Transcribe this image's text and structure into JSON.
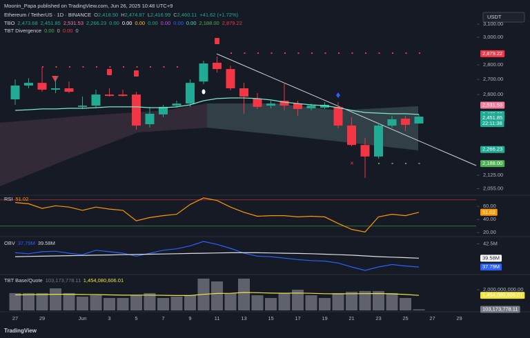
{
  "publisher": "Moonin_Papa published on TradingView.com, Jun 26, 2025 10:48 UTC+9",
  "currency": "USDT",
  "footer": "TradingView",
  "chart_data": [
    {
      "type": "candlestick",
      "title": "Ethereum / TetherUS · 1D · BINANCE",
      "legend": [
        {
          "text": "O",
          "color": "#b2b5be"
        },
        {
          "text": "2,418.50",
          "color": "#22ab94"
        },
        {
          "text": "H",
          "color": "#b2b5be"
        },
        {
          "text": "2,474.87",
          "color": "#22ab94"
        },
        {
          "text": "L",
          "color": "#b2b5be"
        },
        {
          "text": "2,416.99",
          "color": "#22ab94"
        },
        {
          "text": "C",
          "color": "#b2b5be"
        },
        {
          "text": "2,460.11",
          "color": "#22ab94"
        },
        {
          "text": "+41.62 (+1.72%)",
          "color": "#22ab94"
        }
      ],
      "indicators": [
        {
          "name": "TBO",
          "values": [
            {
              "text": "2,473.68",
              "color": "#22ab94"
            },
            {
              "text": "2,451.85",
              "color": "#22ab94"
            },
            {
              "text": "2,531.53",
              "color": "#f77c9c"
            },
            {
              "text": "2,266.23",
              "color": "#22ab94"
            },
            {
              "text": "0.00",
              "color": "#22ab94"
            },
            {
              "text": "0.00",
              "color": "#ffffff"
            },
            {
              "text": "0.00",
              "color": "#f0c419"
            },
            {
              "text": "0.00",
              "color": "#22ab94"
            },
            {
              "text": "0.00",
              "color": "#c353f0"
            },
            {
              "text": "0.00",
              "color": "#2962ff"
            },
            {
              "text": "0.00",
              "color": "#5ad6c0"
            },
            {
              "text": "2,188.00",
              "color": "#4caf50"
            },
            {
              "text": "2,879.22",
              "color": "#f23645"
            }
          ]
        },
        {
          "name": "TBT Divergence",
          "values": [
            {
              "text": "0.00",
              "color": "#4caf50"
            },
            {
              "text": "0",
              "color": "#b2b5be"
            },
            {
              "text": "0.00",
              "color": "#f23645"
            },
            {
              "text": "0",
              "color": "#b2b5be"
            }
          ]
        }
      ],
      "categories": [
        "27",
        null,
        "29",
        null,
        null,
        "Jun",
        null,
        "3",
        null,
        "5",
        null,
        "7",
        null,
        "9",
        null,
        "11",
        null,
        "13",
        null,
        "15",
        null,
        "17",
        null,
        "19",
        null,
        "21",
        null,
        "23",
        null,
        "25",
        null,
        "27",
        null,
        "29"
      ],
      "open": [
        2569,
        2659,
        2677,
        2632,
        2641,
        2521,
        2529,
        2600,
        2600,
        2600,
        2414,
        2474,
        2529,
        2542,
        2686,
        2815,
        2771,
        2641,
        2574,
        2529,
        2560,
        2542,
        2512,
        2516,
        2521,
        2406,
        2292,
        2227,
        2406,
        2448,
        2418.5,
        null,
        null,
        null
      ],
      "high": [
        2700,
        2709,
        2786,
        2723,
        2686,
        2587,
        2632,
        2641,
        2632,
        2618,
        2521,
        2534,
        2560,
        2700,
        2830,
        2859,
        2795,
        2677,
        2609,
        2560,
        2677,
        2560,
        2542,
        2551,
        2551,
        2457,
        2332,
        2423,
        2465,
        2465,
        2474.87,
        null,
        null,
        null
      ],
      "low": [
        2534,
        2641,
        2618,
        2609,
        2609,
        2508,
        2516,
        2587,
        2587,
        2382,
        2394,
        2457,
        2516,
        2521,
        2668,
        2747,
        2627,
        2478,
        2508,
        2512,
        2499,
        2465,
        2499,
        2508,
        2390,
        2285,
        2111,
        2215,
        2394,
        2373,
        2416.99,
        null,
        null,
        null
      ],
      "close": [
        2659,
        2677,
        2632,
        2641,
        2618,
        2529,
        2600,
        2591,
        2591,
        2406,
        2478,
        2521,
        2542,
        2677,
        2810,
        2771,
        2641,
        2587,
        2521,
        2542,
        2529,
        2508,
        2529,
        2534,
        2406,
        2292,
        2227,
        2406,
        2444,
        2410,
        2460.11,
        null,
        null,
        null
      ],
      "up_color": "#22ab94",
      "down_color": "#f23645",
      "lines": [
        {
          "color": "#7ee8c8",
          "values": [
            2499,
            2503,
            2508,
            2508,
            2512,
            2512,
            2516,
            2521,
            2521,
            2521,
            2516,
            2516,
            2521,
            2534,
            2560,
            2574,
            2578,
            2578,
            2574,
            2565,
            2551,
            2542,
            2534,
            2529,
            2516,
            2499,
            2486,
            2482,
            2478,
            2478,
            2473.68,
            null,
            null,
            null
          ]
        }
      ],
      "log_scale": true,
      "ylim": [
        2025,
        3209
      ],
      "yticks": [
        {
          "value": 2055,
          "label": "2,055.00"
        },
        {
          "value": 2125,
          "label": "2,125.00"
        },
        {
          "value": 2600,
          "label": "2,600.00"
        },
        {
          "value": 2700,
          "label": "2,700.00"
        },
        {
          "value": 2800,
          "label": "2,800.00"
        },
        {
          "value": 3000,
          "label": "3,000.00"
        },
        {
          "value": 3100,
          "label": "3,100.00"
        }
      ],
      "price_labels": [
        {
          "value": 2879.22,
          "label": "2,879.22",
          "color": "#f23645"
        },
        {
          "value": 2531.53,
          "label": "2,531.53",
          "color": "#f77c9c"
        },
        {
          "value": 2473.68,
          "label": "2,473.68",
          "color": "#22ab94"
        },
        {
          "value": 2460.11,
          "label": "2,460.11",
          "color": "#22ab94",
          "countdown": "22:11:38"
        },
        {
          "value": 2451.85,
          "label": "2,451.85",
          "color": "#22ab94"
        },
        {
          "value": 2266.23,
          "label": "2,266.23",
          "color": "#22ab94"
        },
        {
          "value": 2188.0,
          "label": "2,188.00",
          "color": "#4caf50"
        }
      ]
    },
    {
      "type": "line",
      "title": "RSI",
      "legend": [
        {
          "text": "51.02",
          "color": "#ff9800"
        }
      ],
      "series": [
        {
          "color": "#ff9800",
          "values": [
            66,
            64,
            57,
            61,
            59,
            54,
            59,
            56,
            54,
            38,
            43,
            46,
            48,
            63,
            73,
            69,
            59,
            51,
            45,
            46,
            46,
            44,
            45,
            44,
            34,
            25,
            21,
            44,
            48,
            46,
            51.02,
            null,
            null,
            null
          ]
        }
      ],
      "levels": [
        {
          "value": 70,
          "color": "#f23645"
        },
        {
          "value": 30,
          "color": "#4caf50"
        }
      ],
      "ylim": [
        15,
        75
      ],
      "yticks": [
        {
          "value": 20,
          "label": "20.00"
        },
        {
          "value": 40,
          "label": "40.00"
        },
        {
          "value": 60,
          "label": "60.00"
        }
      ],
      "price_labels": [
        {
          "value": 51.02,
          "label": "51.02",
          "color": "#ff9800"
        }
      ]
    },
    {
      "type": "line",
      "title": "OBV",
      "legend": [
        {
          "text": "37.79M",
          "color": "#2962ff"
        },
        {
          "text": "39.58M",
          "color": "#d1d4dc"
        }
      ],
      "series": [
        {
          "color": "#2962ff",
          "values": [
            40.7,
            40.5,
            40.9,
            41.0,
            40.6,
            40.3,
            41.2,
            40.9,
            40.6,
            40.0,
            40.6,
            41.2,
            41.5,
            42.1,
            43.0,
            42.4,
            41.6,
            40.6,
            40.0,
            39.9,
            39.6,
            39.3,
            39.1,
            39.0,
            38.6,
            37.8,
            37.1,
            37.8,
            38.3,
            38.0,
            37.79,
            null,
            null,
            null
          ]
        },
        {
          "color": "#e0e0e0",
          "values": [
            39.9,
            39.95,
            40.0,
            40.05,
            40.1,
            40.15,
            40.2,
            40.25,
            40.3,
            40.35,
            40.4,
            40.45,
            40.5,
            40.55,
            40.6,
            40.65,
            40.7,
            40.7,
            40.7,
            40.65,
            40.6,
            40.55,
            40.5,
            40.4,
            40.3,
            40.2,
            40.05,
            39.9,
            39.8,
            39.7,
            39.58,
            null,
            null,
            null
          ]
        }
      ],
      "ylim": [
        36.4,
        43.7
      ],
      "yticks": [
        {
          "value": 42.5,
          "label": "42.5M"
        }
      ],
      "price_labels": [
        {
          "value": 39.58,
          "label": "39.58M",
          "color": "#ffffff"
        },
        {
          "value": 37.79,
          "label": "37.79M",
          "color": "#2962ff"
        }
      ]
    },
    {
      "type": "bar",
      "title": "TBT Base/Quote",
      "legend": [
        {
          "text": "103,173,778.11",
          "color": "#787b86"
        },
        {
          "text": "1,454,080,606.01",
          "color": "#f0e442"
        }
      ],
      "values": [
        1670000000,
        1670000000,
        1670000000,
        2130000000,
        1670000000,
        1330000000,
        1470000000,
        1200000000,
        1200000000,
        1470000000,
        1670000000,
        1200000000,
        1330000000,
        1470000000,
        3070000000,
        2800000000,
        1670000000,
        3070000000,
        1470000000,
        1200000000,
        1670000000,
        2000000000,
        1470000000,
        1200000000,
        1670000000,
        1800000000,
        1870000000,
        1870000000,
        1670000000,
        1200000000,
        103173778.11,
        null,
        null,
        null
      ],
      "color": "#787b86",
      "series": [
        {
          "color": "#f0e442",
          "values": [
            1500000000,
            1520000000,
            1530000000,
            1560000000,
            1560000000,
            1540000000,
            1530000000,
            1500000000,
            1470000000,
            1470000000,
            1480000000,
            1460000000,
            1440000000,
            1440000000,
            1550000000,
            1640000000,
            1650000000,
            1730000000,
            1710000000,
            1670000000,
            1660000000,
            1680000000,
            1650000000,
            1610000000,
            1600000000,
            1610000000,
            1620000000,
            1630000000,
            1600000000,
            1540000000,
            1454080606.01,
            null,
            null,
            null
          ]
        }
      ],
      "ylim": [
        0,
        3330000000
      ],
      "yticks": [
        {
          "value": 2000000000,
          "label": "2,000,000,000.00"
        }
      ],
      "price_labels": [
        {
          "value": 1454080606.01,
          "label": "1,454,080,606.01",
          "color": "#f0e442"
        },
        {
          "value": 103173778.11,
          "label": "103,173,778.11",
          "color": "#787b86"
        }
      ]
    }
  ]
}
